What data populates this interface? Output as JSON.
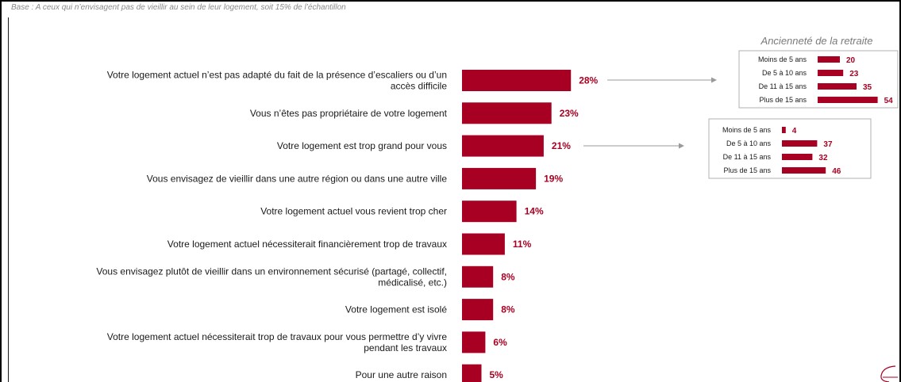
{
  "base_note": "Base : A ceux qui n’envisagent pas de vieillir au sein de leur logement, soit 15% de l’échantillon",
  "colors": {
    "bar": "#a80022",
    "value_text": "#a80022"
  },
  "chart_data": [
    {
      "type": "bar",
      "orientation": "horizontal",
      "categories": [
        [
          "Votre logement actuel n’est pas adapté du fait de la présence d’escaliers ou d’un",
          "accès difficile"
        ],
        [
          "Vous n’êtes pas propriétaire de votre logement"
        ],
        [
          "Votre logement est trop grand pour vous"
        ],
        [
          "Vous envisagez de vieillir dans une autre région ou dans une autre ville"
        ],
        [
          "Votre logement actuel vous revient trop cher"
        ],
        [
          "Votre logement actuel nécessiterait financièrement trop de travaux"
        ],
        [
          "Vous envisagez plutôt de vieillir dans un environnement sécurisé (partagé, collectif,",
          "médicalisé, etc.)"
        ],
        [
          "Votre logement est isolé"
        ],
        [
          "Votre logement actuel nécessiterait trop de travaux pour vous permettre d’y vivre",
          "pendant les travaux"
        ],
        [
          "Pour une autre raison"
        ]
      ],
      "values": [
        28,
        23,
        21,
        19,
        14,
        11,
        8,
        8,
        6,
        5
      ],
      "value_labels": [
        "28%",
        "23%",
        "21%",
        "19%",
        "14%",
        "11%",
        "8%",
        "8%",
        "6%",
        "5%"
      ]
    },
    {
      "type": "bar",
      "orientation": "horizontal",
      "title": "Ancienneté de la retraite",
      "categories": [
        "Moins de 5 ans",
        "De 5 à 10 ans",
        "De 11 à 15 ans",
        "Plus de 15 ans"
      ],
      "values": [
        20,
        23,
        35,
        54
      ],
      "value_labels": [
        "20",
        "23",
        "35",
        "54"
      ]
    },
    {
      "type": "bar",
      "orientation": "horizontal",
      "categories": [
        "Moins de 5 ans",
        "De 5 à 10 ans",
        "De 11 à 15 ans",
        "Plus de 15 ans"
      ],
      "values": [
        4,
        37,
        32,
        46
      ],
      "value_labels": [
        "4",
        "37",
        "32",
        "46"
      ]
    }
  ]
}
